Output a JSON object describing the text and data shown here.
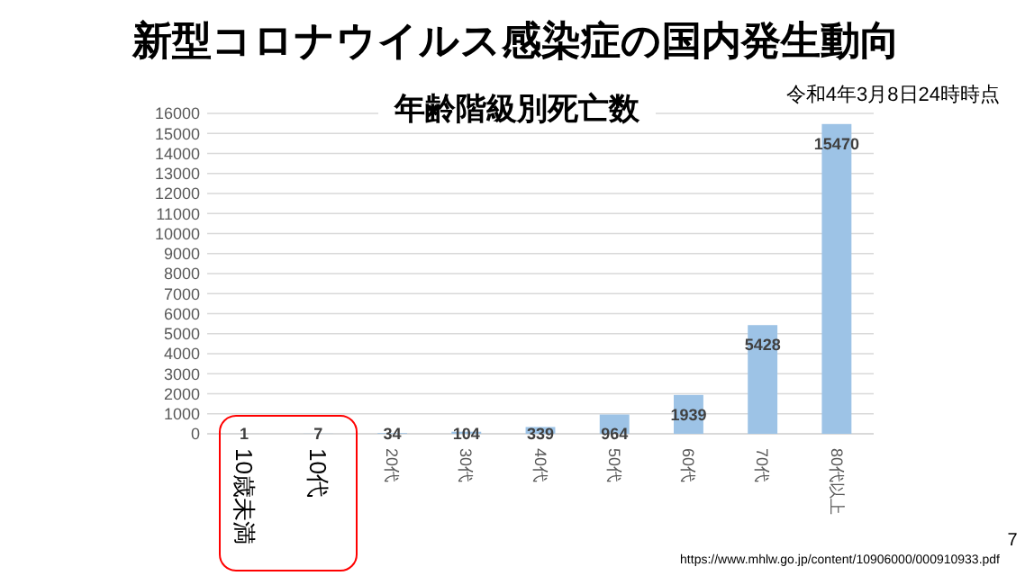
{
  "chart_data": {
    "type": "bar",
    "title": "新型コロナウイルス感染症の国内発生動向",
    "subtitle": "年齢階級別死亡数",
    "annotations": [
      "令和4年3月8日24時時点",
      "https://www.mhlw.go.jp/content/10906000/000910933.pdf",
      "7"
    ],
    "categories": [
      "10歳未満",
      "10代",
      "20代",
      "30代",
      "40代",
      "50代",
      "60代",
      "70代",
      "80代以上"
    ],
    "values": [
      1,
      7,
      34,
      104,
      339,
      964,
      1939,
      5428,
      15470
    ],
    "color": "#9dc3e6",
    "ylim": [
      0,
      16000
    ],
    "yticks": [
      0,
      1000,
      2000,
      3000,
      4000,
      5000,
      6000,
      7000,
      8000,
      9000,
      10000,
      11000,
      12000,
      13000,
      14000,
      15000,
      16000
    ],
    "grid": "y",
    "data_labels": true
  }
}
